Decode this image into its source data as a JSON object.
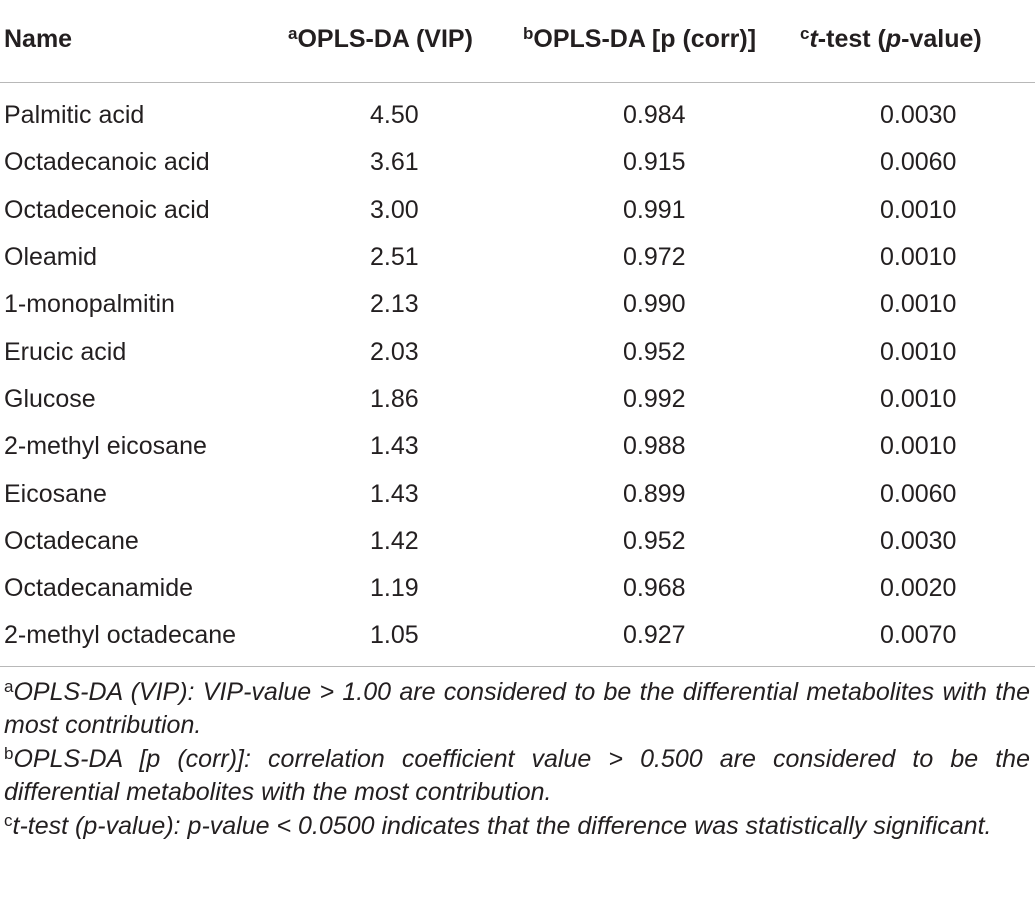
{
  "table": {
    "headers": [
      {
        "sup": "",
        "text": "Name",
        "italic_parts": []
      },
      {
        "sup": "a",
        "text": "OPLS-DA (VIP)"
      },
      {
        "sup": "b",
        "text": "OPLS-DA [p (corr)]"
      },
      {
        "sup": "c",
        "parts": [
          "t",
          "-test (",
          "p",
          "-value)"
        ]
      }
    ],
    "rows": [
      {
        "name": "Palmitic acid",
        "vip": "4.50",
        "pcorr": "0.984",
        "ttest": "0.0030"
      },
      {
        "name": "Octadecanoic acid",
        "vip": "3.61",
        "pcorr": "0.915",
        "ttest": "0.0060"
      },
      {
        "name": "Octadecenoic acid",
        "vip": "3.00",
        "pcorr": "0.991",
        "ttest": "0.0010"
      },
      {
        "name": "Oleamid",
        "vip": "2.51",
        "pcorr": "0.972",
        "ttest": "0.0010"
      },
      {
        "name": "1-monopalmitin",
        "vip": "2.13",
        "pcorr": "0.990",
        "ttest": "0.0010"
      },
      {
        "name": "Erucic acid",
        "vip": "2.03",
        "pcorr": "0.952",
        "ttest": "0.0010"
      },
      {
        "name": "Glucose",
        "vip": "1.86",
        "pcorr": "0.992",
        "ttest": "0.0010"
      },
      {
        "name": "2-methyl eicosane",
        "vip": "1.43",
        "pcorr": "0.988",
        "ttest": "0.0010"
      },
      {
        "name": "Eicosane",
        "vip": "1.43",
        "pcorr": "0.899",
        "ttest": "0.0060"
      },
      {
        "name": "Octadecane",
        "vip": "1.42",
        "pcorr": "0.952",
        "ttest": "0.0030"
      },
      {
        "name": "Octadecanamide",
        "vip": "1.19",
        "pcorr": "0.968",
        "ttest": "0.0020"
      },
      {
        "name": "2-methyl octadecane",
        "vip": "1.05",
        "pcorr": "0.927",
        "ttest": "0.0070"
      }
    ]
  },
  "footnotes": [
    {
      "sup": "a",
      "text": "OPLS-DA (VIP): VIP-value > 1.00 are considered to be the differential metabolites with the most contribution."
    },
    {
      "sup": "b",
      "text": "OPLS-DA [p (corr)]: correlation coefficient value > 0.500 are considered to be the differential metabolites with the most contribution."
    },
    {
      "sup": "c",
      "text": "t-test (p-value): p-value < 0.0500 indicates that the difference was statistically significant."
    }
  ],
  "colors": {
    "text": "#231f20",
    "rule": "#b8b8b8",
    "background": "#ffffff"
  }
}
